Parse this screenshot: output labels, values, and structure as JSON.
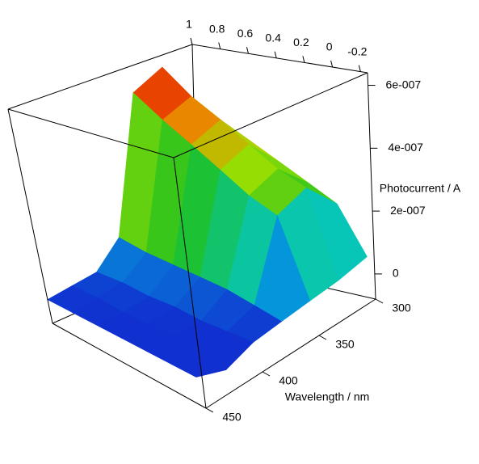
{
  "chart_data": {
    "type": "surface3d",
    "x_label": null,
    "y_label": "Wavelength / nm",
    "z_label": "Photocurrent / A",
    "xlim": [
      1,
      -0.25
    ],
    "xticks": [
      1,
      0.8,
      0.6,
      0.4,
      0.2,
      0,
      -0.2
    ],
    "ylim": [
      300,
      450
    ],
    "yticks": [
      300,
      350,
      400,
      450
    ],
    "zlim": [
      -8e-08,
      6.4e-07
    ],
    "zticks": [
      0,
      {
        "value": 2e-07,
        "label": "2e-007"
      },
      {
        "value": 4e-07,
        "label": "4e-007"
      },
      {
        "value": 6e-07,
        "label": "6e-007"
      }
    ],
    "potentials": [
      1,
      0.8,
      0.6,
      0.4,
      0.2,
      0,
      -0.2
    ],
    "wavelengths": [
      300,
      325,
      350,
      375,
      400,
      425,
      450
    ],
    "z": [
      [
        4.5e-07,
        4e-07,
        3.5e-07,
        3e-07,
        2.5e-07,
        2e-07,
        5e-08
      ],
      [
        6e-07,
        5.2e-07,
        4.6e-07,
        4e-07,
        3.4e-07,
        3e-07,
        3e-08
      ],
      [
        5.5e-07,
        4.8e-07,
        4.2e-07,
        3.6e-07,
        3e-07,
        2.6e-07,
        2e-08
      ],
      [
        1e-07,
        8e-08,
        7e-08,
        6e-08,
        5e-08,
        3e-08,
        1e-08
      ],
      [
        2e-08,
        2e-08,
        1e-08,
        1e-08,
        0,
        0,
        0
      ],
      [
        1e-08,
        1e-08,
        0,
        0,
        0,
        0,
        -3e-08
      ],
      [
        0,
        0,
        0,
        0,
        0,
        0,
        0
      ]
    ],
    "colors": [
      "#1030d0",
      "#00c8e0",
      "#20c020",
      "#a0e000",
      "#f08000",
      "#e00000"
    ]
  }
}
